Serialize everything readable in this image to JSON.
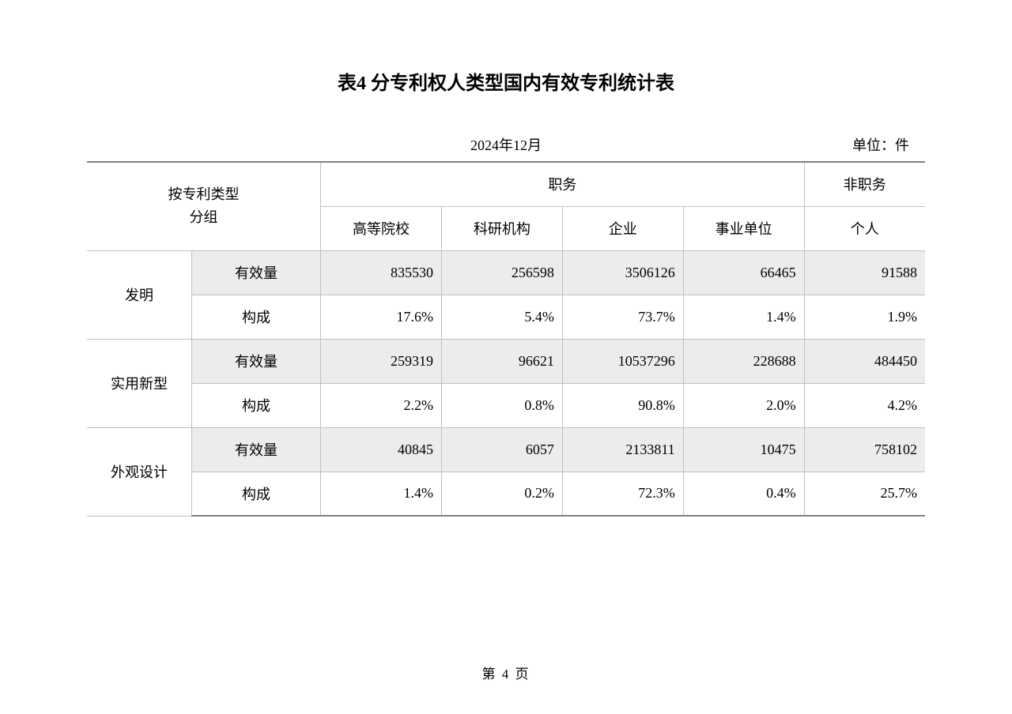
{
  "title": "表4 分专利权人类型国内有效专利统计表",
  "date": "2024年12月",
  "unit": "单位：件",
  "pageNumber": "第 4 页",
  "headers": {
    "groupLabel1": "按专利类型",
    "groupLabel2": "分组",
    "zhiwu": "职务",
    "feizhiwu": "非职务",
    "col1": "高等院校",
    "col2": "科研机构",
    "col3": "企业",
    "col4": "事业单位",
    "col5": "个人"
  },
  "rowLabels": {
    "youxiaoliang": "有效量",
    "goucheng": "构成"
  },
  "groups": [
    {
      "name": "发明",
      "rows": [
        {
          "label": "youxiaoliang",
          "shaded": true,
          "cells": [
            "835530",
            "256598",
            "3506126",
            "66465",
            "91588"
          ]
        },
        {
          "label": "goucheng",
          "shaded": false,
          "cells": [
            "17.6%",
            "5.4%",
            "73.7%",
            "1.4%",
            "1.9%"
          ]
        }
      ]
    },
    {
      "name": "实用新型",
      "rows": [
        {
          "label": "youxiaoliang",
          "shaded": true,
          "cells": [
            "259319",
            "96621",
            "10537296",
            "228688",
            "484450"
          ]
        },
        {
          "label": "goucheng",
          "shaded": false,
          "cells": [
            "2.2%",
            "0.8%",
            "90.8%",
            "2.0%",
            "4.2%"
          ]
        }
      ]
    },
    {
      "name": "外观设计",
      "rows": [
        {
          "label": "youxiaoliang",
          "shaded": true,
          "cells": [
            "40845",
            "6057",
            "2133811",
            "10475",
            "758102"
          ]
        },
        {
          "label": "goucheng",
          "shaded": false,
          "cells": [
            "1.4%",
            "0.2%",
            "72.3%",
            "0.4%",
            "25.7%"
          ]
        }
      ]
    }
  ],
  "style": {
    "background": "#ffffff",
    "shadedBg": "#ececec",
    "borderColor": "#c0c0c0",
    "outerBorderColor": "#808080",
    "textColor": "#000000",
    "titleFontSize": 24,
    "bodyFontSize": 18
  }
}
